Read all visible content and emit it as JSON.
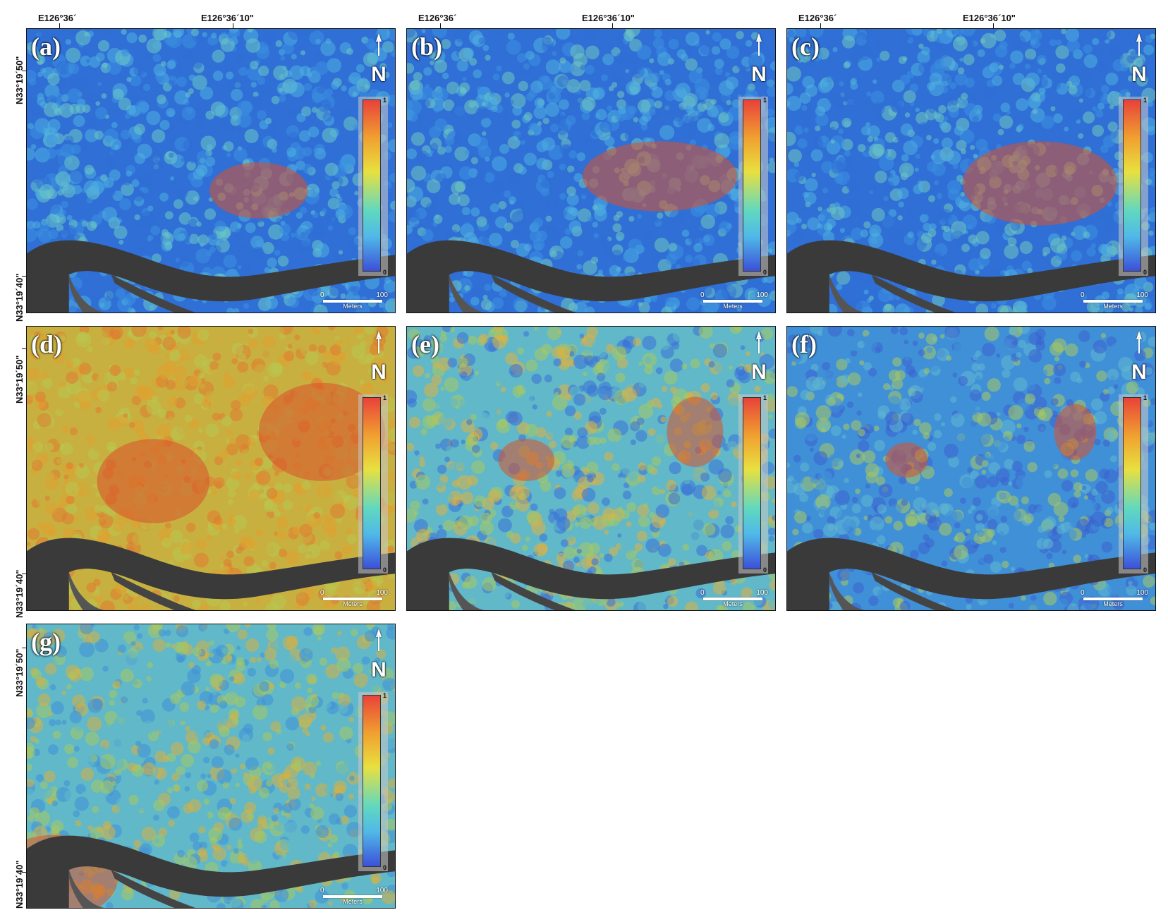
{
  "top_coords": {
    "lon1": "E126°36´",
    "lon2": "E126°36´10\""
  },
  "left_coords": {
    "lat1": "N33°19´50\"",
    "lat2": "N33°19´40\""
  },
  "north_label": "N",
  "colorbar": {
    "max": "1",
    "min": "0",
    "colors": [
      "#e8423a",
      "#f0a030",
      "#e8e040",
      "#60d8c0",
      "#50b8e8",
      "#3c50d8"
    ]
  },
  "scalebar": {
    "start": "0",
    "end": "100",
    "unit": "Meters"
  },
  "panels": [
    {
      "label": "(a)"
    },
    {
      "label": "(b)"
    },
    {
      "label": "(c)"
    },
    {
      "label": "(d)"
    },
    {
      "label": "(e)"
    },
    {
      "label": "(f)"
    },
    {
      "label": "(g)"
    }
  ],
  "road_color": "#3a3a3a"
}
